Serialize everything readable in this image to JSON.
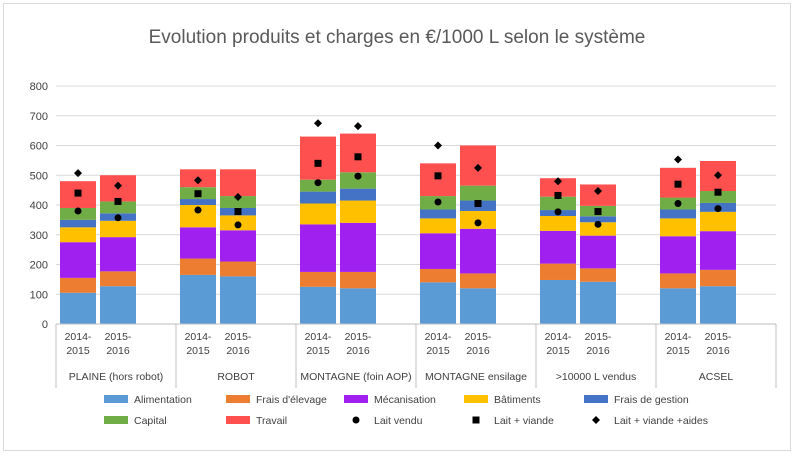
{
  "chart_data": {
    "type": "bar",
    "subtype": "stacked-bar-with-markers",
    "title": "Evolution produits et charges en €/1000 L selon le système",
    "ylim": [
      0,
      800
    ],
    "yticks": [
      0,
      100,
      200,
      300,
      400,
      500,
      600,
      700,
      800
    ],
    "grid": true,
    "legend_position": "bottom",
    "groups": [
      {
        "name": "PLAINE  (hors robot)",
        "bars": [
          "2014-\n2015",
          "2015-\n2016"
        ]
      },
      {
        "name": "ROBOT",
        "bars": [
          "2014-\n2015",
          "2015-\n2016"
        ]
      },
      {
        "name": "MONTAGNE (foin AOP)",
        "bars": [
          "2014-\n2015",
          "2015-\n2016"
        ]
      },
      {
        "name": "MONTAGNE ensilage",
        "bars": [
          "2014-\n2015",
          "2015-\n2016"
        ]
      },
      {
        "name": ">10000 L vendus",
        "bars": [
          "2014-\n2015",
          "2015-\n2016"
        ]
      },
      {
        "name": "ACSEL",
        "bars": [
          "2014-\n2015",
          "2015-\n2016"
        ]
      }
    ],
    "categories": [
      "2014-2015",
      "2015-2016",
      "2014-2015",
      "2015-2016",
      "2014-2015",
      "2015-2016",
      "2014-2015",
      "2015-2016",
      "2014-2015",
      "2015-2016",
      "2014-2015",
      "2015-2016"
    ],
    "series": [
      {
        "name": "Alimentation",
        "color": "#5b9bd5",
        "values": [
          105,
          127,
          165,
          160,
          125,
          120,
          140,
          120,
          148,
          142,
          120,
          127
        ]
      },
      {
        "name": "Frais d'élevage",
        "color": "#ed7d31",
        "values": [
          50,
          50,
          55,
          50,
          50,
          55,
          45,
          50,
          55,
          45,
          50,
          55
        ]
      },
      {
        "name": "Mécanisation",
        "color": "#a020f0",
        "values": [
          120,
          115,
          105,
          105,
          160,
          165,
          120,
          150,
          110,
          110,
          125,
          130
        ]
      },
      {
        "name": "Bâtiments",
        "color": "#ffc000",
        "values": [
          50,
          55,
          75,
          50,
          70,
          75,
          50,
          60,
          50,
          45,
          60,
          65
        ]
      },
      {
        "name": "Frais de gestion",
        "color": "#4472c4",
        "values": [
          25,
          25,
          20,
          25,
          40,
          40,
          30,
          35,
          20,
          20,
          30,
          30
        ]
      },
      {
        "name": "Capital",
        "color": "#70ad47",
        "values": [
          40,
          40,
          40,
          40,
          40,
          55,
          45,
          50,
          45,
          35,
          40,
          40
        ]
      },
      {
        "name": "Travail",
        "color": "#ff5050",
        "values": [
          90,
          88,
          60,
          90,
          145,
          130,
          110,
          135,
          62,
          72,
          100,
          101
        ]
      }
    ],
    "markers": [
      {
        "name": "Lait vendu",
        "shape": "circle",
        "values": [
          380,
          357,
          383,
          333,
          475,
          497,
          410,
          340,
          377,
          335,
          405,
          388
        ]
      },
      {
        "name": "Lait + viande",
        "shape": "square",
        "values": [
          440,
          412,
          438,
          378,
          540,
          562,
          498,
          405,
          432,
          378,
          470,
          443
        ]
      },
      {
        "name": "Lait + viande +aides",
        "shape": "diamond",
        "values": [
          507,
          465,
          483,
          427,
          675,
          665,
          600,
          525,
          480,
          447,
          553,
          500
        ]
      }
    ]
  }
}
